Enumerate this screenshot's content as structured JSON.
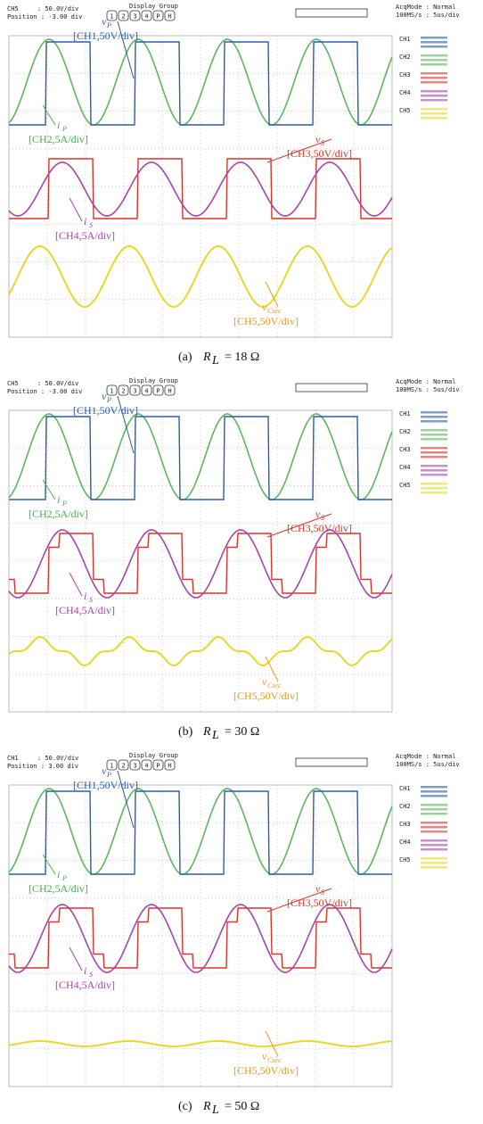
{
  "panels": [
    {
      "header": {
        "channel": "CH5",
        "scale": ": 50.0V/div",
        "position": "Position : -3.00 div",
        "display_group": "Display Group",
        "buttons": [
          "1",
          "2",
          "3",
          "4",
          "P",
          "H"
        ],
        "acq_mode": "AcqMode : Normal",
        "timebase": "100MS/s : 5us/div"
      },
      "sidebar": [
        "CH1",
        "CH2",
        "CH3",
        "CH4",
        "CH5"
      ],
      "labels": [
        {
          "symbol": "v",
          "sub": "P",
          "text": "[CH1,50V/div]"
        },
        {
          "symbol": "i",
          "sub": "P",
          "text": "[CH2,5A/div]"
        },
        {
          "symbol": "v",
          "sub": "S",
          "text": "[CH3,50V/div]"
        },
        {
          "symbol": "i",
          "sub": "S",
          "text": "[CH4,5A/div]"
        },
        {
          "symbol": "v",
          "sub": "Cscc",
          "text": "[CH5,50V/div]"
        }
      ],
      "caption": {
        "tag": "(a)",
        "var": "R",
        "sub": "L",
        "rest": "= 18 Ω"
      }
    },
    {
      "header": {
        "channel": "CH5",
        "scale": ": 50.0V/div",
        "position": "Position : -3.00 div",
        "display_group": "Display Group",
        "buttons": [
          "1",
          "2",
          "3",
          "4",
          "P",
          "H"
        ],
        "acq_mode": "AcqMode : Normal",
        "timebase": "100MS/s : 5us/div"
      },
      "sidebar": [
        "CH1",
        "CH2",
        "CH3",
        "CH4",
        "CH5"
      ],
      "labels": [
        {
          "symbol": "v",
          "sub": "P",
          "text": "[CH1,50V/div]"
        },
        {
          "symbol": "i",
          "sub": "P",
          "text": "[CH2,5A/div]"
        },
        {
          "symbol": "v",
          "sub": "S",
          "text": "[CH3,50V/div]"
        },
        {
          "symbol": "i",
          "sub": "S",
          "text": "[CH4,5A/div]"
        },
        {
          "symbol": "v",
          "sub": "Cscc",
          "text": "[CH5,50V/div]"
        }
      ],
      "caption": {
        "tag": "(b)",
        "var": "R",
        "sub": "L",
        "rest": "= 30 Ω"
      }
    },
    {
      "header": {
        "channel": "CH1",
        "scale": ": 50.0V/div",
        "position": "Position : 3.00 div",
        "display_group": "Display Group",
        "buttons": [
          "1",
          "2",
          "3",
          "4",
          "P",
          "H"
        ],
        "acq_mode": "AcqMode : Normal",
        "timebase": "100MS/s : 5us/div"
      },
      "sidebar": [
        "CH1",
        "CH2",
        "CH3",
        "CH4",
        "CH5"
      ],
      "labels": [
        {
          "symbol": "v",
          "sub": "P",
          "text": "[CH1,50V/div]"
        },
        {
          "symbol": "i",
          "sub": "P",
          "text": "[CH2,5A/div]"
        },
        {
          "symbol": "v",
          "sub": "S",
          "text": "[CH3,50V/div]"
        },
        {
          "symbol": "i",
          "sub": "S",
          "text": "[CH4,5A/div]"
        },
        {
          "symbol": "v",
          "sub": "Cscc",
          "text": "[CH5,50V/div]"
        }
      ],
      "caption": {
        "tag": "(c)",
        "var": "R",
        "sub": "L",
        "rest": "= 50 Ω"
      }
    }
  ]
}
